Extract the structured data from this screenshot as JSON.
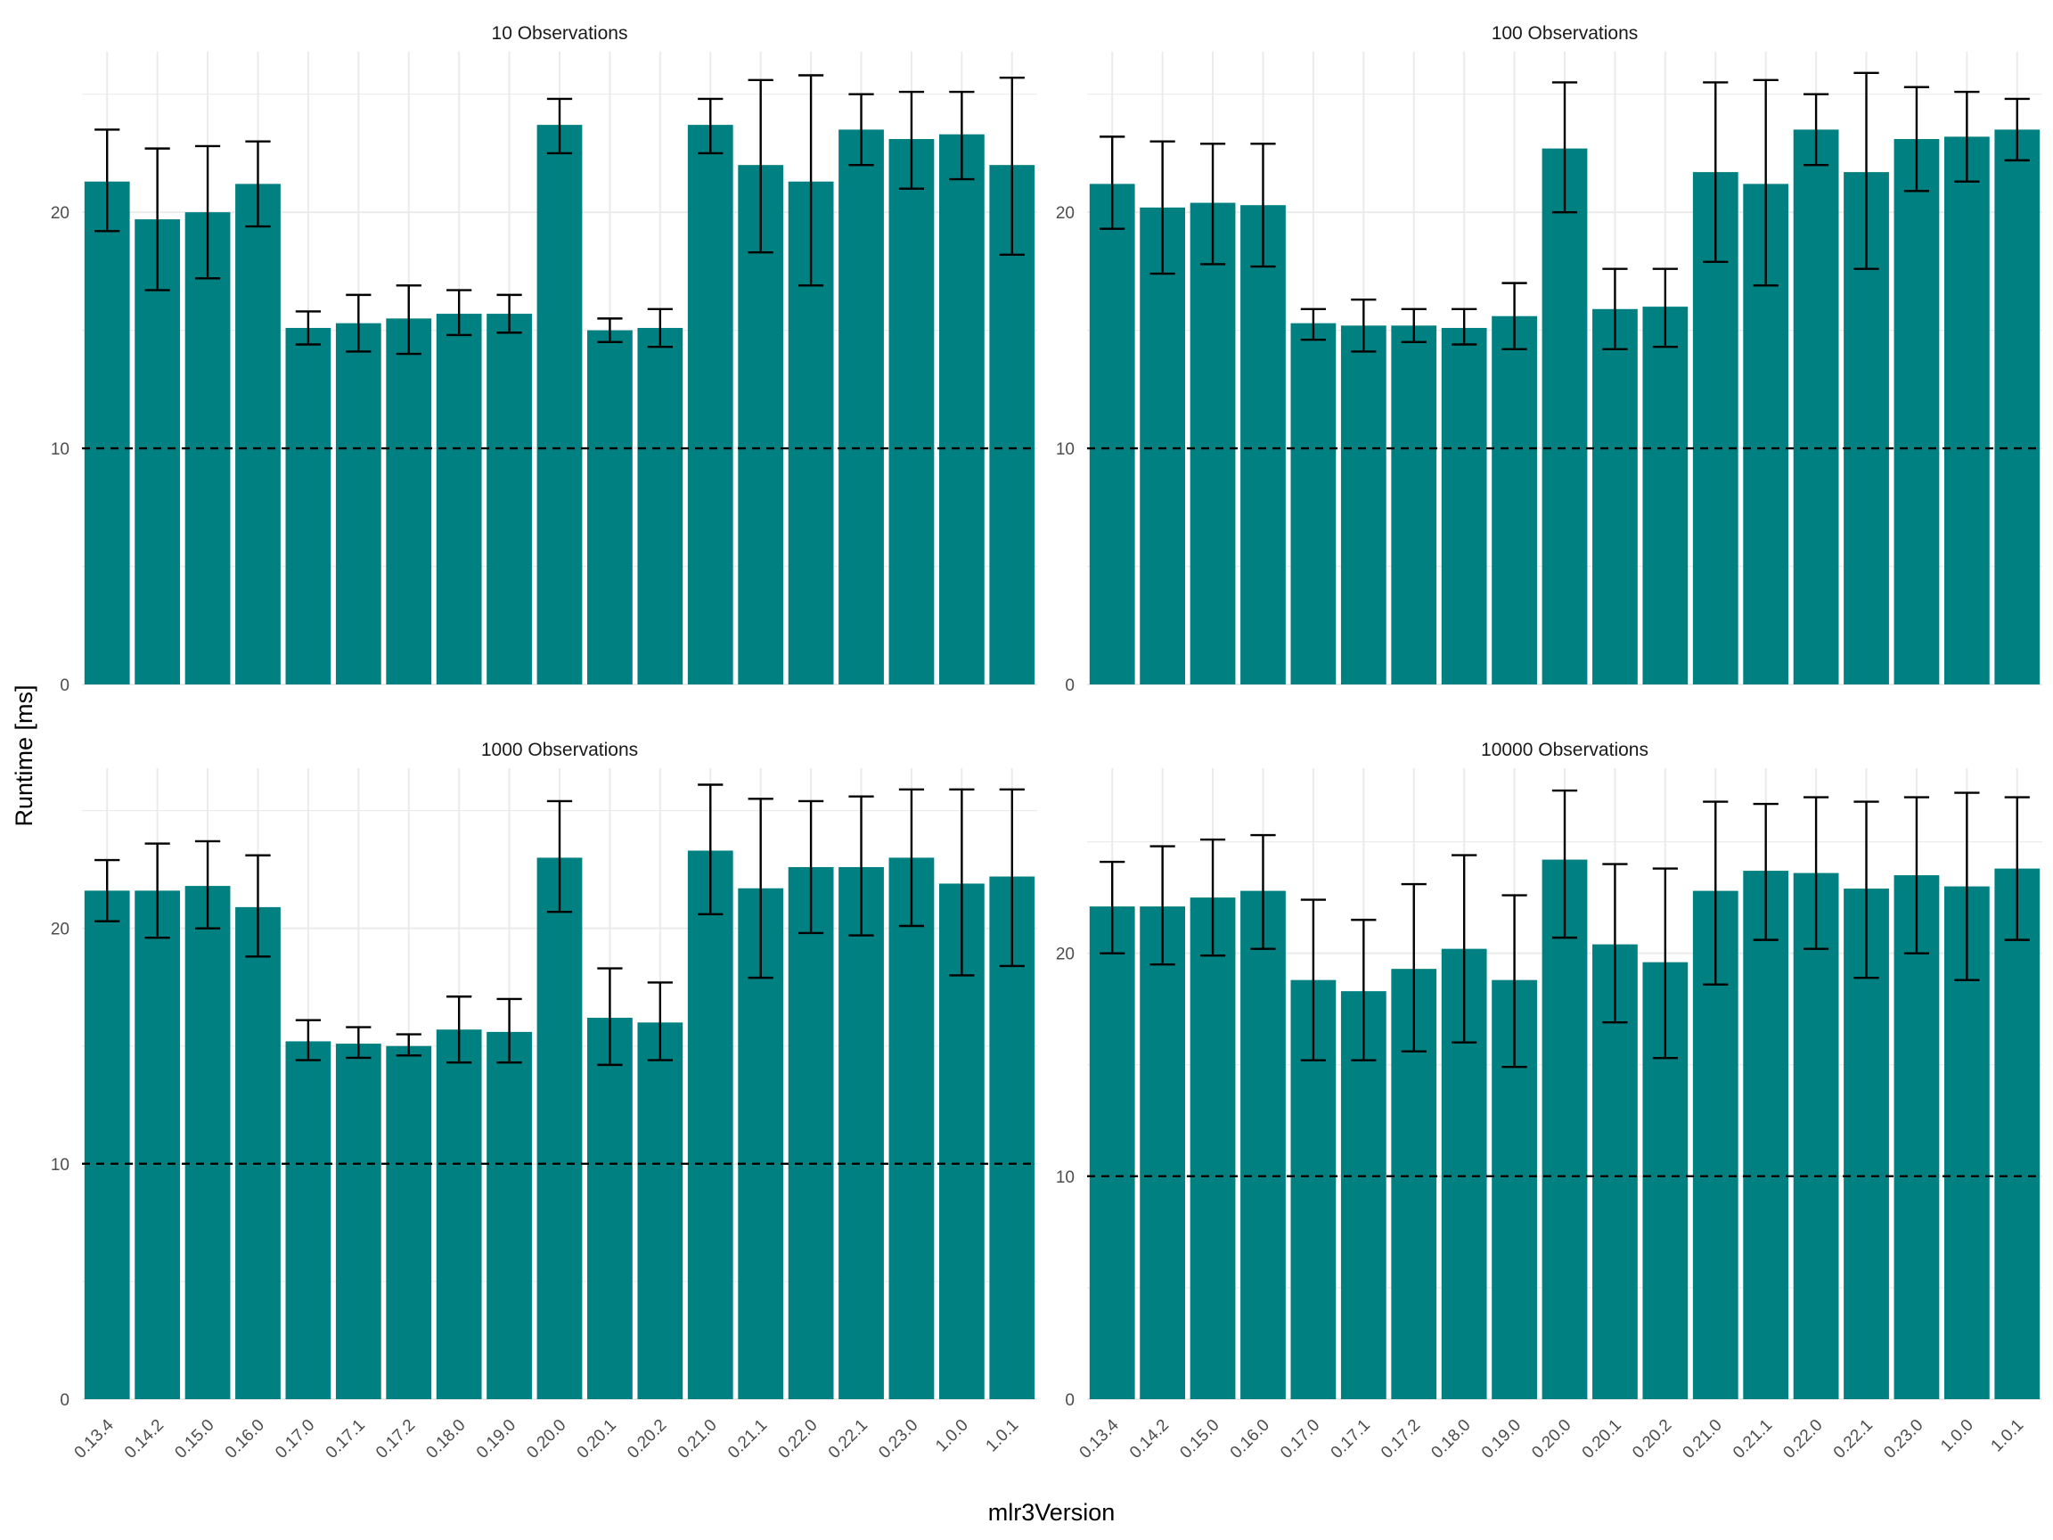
{
  "chart_data": {
    "type": "bar",
    "xlabel": "mlr3Version",
    "ylabel": "Runtime [ms]",
    "colors": {
      "bar": "#008080",
      "error_bar": "#000000",
      "reference_line": "#000000",
      "grid": "#ebebeb"
    },
    "reference_line": 10,
    "grid": true,
    "categories": [
      "0.13.4",
      "0.14.2",
      "0.15.0",
      "0.16.0",
      "0.17.0",
      "0.17.1",
      "0.17.2",
      "0.18.0",
      "0.19.0",
      "0.20.0",
      "0.20.1",
      "0.20.2",
      "0.21.0",
      "0.21.1",
      "0.22.0",
      "0.22.1",
      "0.23.0",
      "1.0.0",
      "1.0.1"
    ],
    "panels": [
      {
        "title": "10 Observations",
        "ylim": [
          0,
          26.8
        ],
        "yticks": [
          0,
          10,
          20
        ],
        "values": [
          21.3,
          19.7,
          20.0,
          21.2,
          15.1,
          15.3,
          15.5,
          15.7,
          15.7,
          23.7,
          15.0,
          15.1,
          23.7,
          22.0,
          21.3,
          23.5,
          23.1,
          23.3,
          22.0
        ],
        "lower": [
          19.2,
          16.7,
          17.2,
          19.4,
          14.4,
          14.1,
          14.0,
          14.8,
          14.9,
          22.5,
          14.5,
          14.3,
          22.5,
          18.3,
          16.9,
          22.0,
          21.0,
          21.4,
          18.2
        ],
        "upper": [
          23.5,
          22.7,
          22.8,
          23.0,
          15.8,
          16.5,
          16.9,
          16.7,
          16.5,
          24.8,
          15.5,
          15.9,
          24.8,
          25.6,
          25.8,
          25.0,
          25.1,
          25.1,
          25.7
        ]
      },
      {
        "title": "100 Observations",
        "ylim": [
          0,
          26.8
        ],
        "yticks": [
          0,
          10,
          20
        ],
        "values": [
          21.2,
          20.2,
          20.4,
          20.3,
          15.3,
          15.2,
          15.2,
          15.1,
          15.6,
          22.7,
          15.9,
          16.0,
          21.7,
          21.2,
          23.5,
          21.7,
          23.1,
          23.2,
          23.5
        ],
        "lower": [
          19.3,
          17.4,
          17.8,
          17.7,
          14.6,
          14.1,
          14.5,
          14.4,
          14.2,
          20.0,
          14.2,
          14.3,
          17.9,
          16.9,
          22.0,
          17.6,
          20.9,
          21.3,
          22.2
        ],
        "upper": [
          23.2,
          23.0,
          22.9,
          22.9,
          15.9,
          16.3,
          15.9,
          15.9,
          17.0,
          25.5,
          17.6,
          17.6,
          25.5,
          25.6,
          25.0,
          25.9,
          25.3,
          25.1,
          24.8
        ]
      },
      {
        "title": "1000 Observations",
        "ylim": [
          0,
          26.8
        ],
        "yticks": [
          0,
          10,
          20
        ],
        "values": [
          21.6,
          21.6,
          21.8,
          20.9,
          15.2,
          15.1,
          15.0,
          15.7,
          15.6,
          23.0,
          16.2,
          16.0,
          23.3,
          21.7,
          22.6,
          22.6,
          23.0,
          21.9,
          22.2
        ],
        "lower": [
          20.3,
          19.6,
          20.0,
          18.8,
          14.4,
          14.5,
          14.6,
          14.3,
          14.3,
          20.7,
          14.2,
          14.4,
          20.6,
          17.9,
          19.8,
          19.7,
          20.1,
          18.0,
          18.4
        ],
        "upper": [
          22.9,
          23.6,
          23.7,
          23.1,
          16.1,
          15.8,
          15.5,
          17.1,
          17.0,
          25.4,
          18.3,
          17.7,
          26.1,
          25.5,
          25.4,
          25.6,
          25.9,
          25.9,
          25.9
        ]
      },
      {
        "title": "10000 Observations",
        "ylim": [
          0,
          28.3
        ],
        "yticks": [
          0,
          10,
          20
        ],
        "values": [
          22.1,
          22.1,
          22.5,
          22.8,
          18.8,
          18.3,
          19.3,
          20.2,
          18.8,
          24.2,
          20.4,
          19.6,
          22.8,
          23.7,
          23.6,
          22.9,
          23.5,
          23.0,
          23.8
        ],
        "lower": [
          20.0,
          19.5,
          19.9,
          20.2,
          15.2,
          15.2,
          15.6,
          16.0,
          14.9,
          20.7,
          16.9,
          15.3,
          18.6,
          20.6,
          20.2,
          18.9,
          20.0,
          18.8,
          20.6
        ],
        "upper": [
          24.1,
          24.8,
          25.1,
          25.3,
          22.4,
          21.5,
          23.1,
          24.4,
          22.6,
          27.3,
          24.0,
          23.8,
          26.8,
          26.7,
          27.0,
          26.8,
          27.0,
          27.2,
          27.0
        ]
      }
    ]
  }
}
